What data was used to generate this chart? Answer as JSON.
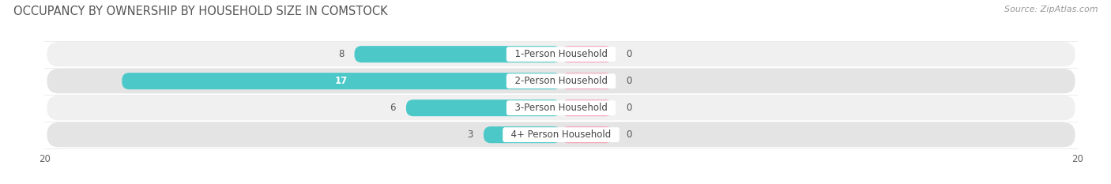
{
  "title": "OCCUPANCY BY OWNERSHIP BY HOUSEHOLD SIZE IN COMSTOCK",
  "source": "Source: ZipAtlas.com",
  "categories": [
    "1-Person Household",
    "2-Person Household",
    "3-Person Household",
    "4+ Person Household"
  ],
  "owner_values": [
    8,
    17,
    6,
    3
  ],
  "renter_values": [
    0,
    0,
    0,
    0
  ],
  "owner_color": "#4dc8c8",
  "renter_color": "#f4a0b5",
  "row_bg_light": "#f0f0f0",
  "row_bg_dark": "#e4e4e4",
  "xlim_left": -20,
  "xlim_right": 20,
  "title_fontsize": 10.5,
  "source_fontsize": 8,
  "label_fontsize": 8.5,
  "value_fontsize": 8.5,
  "tick_fontsize": 8.5,
  "legend_fontsize": 8.5,
  "figsize": [
    14.06,
    2.33
  ],
  "dpi": 100,
  "renter_stub": 2.0
}
